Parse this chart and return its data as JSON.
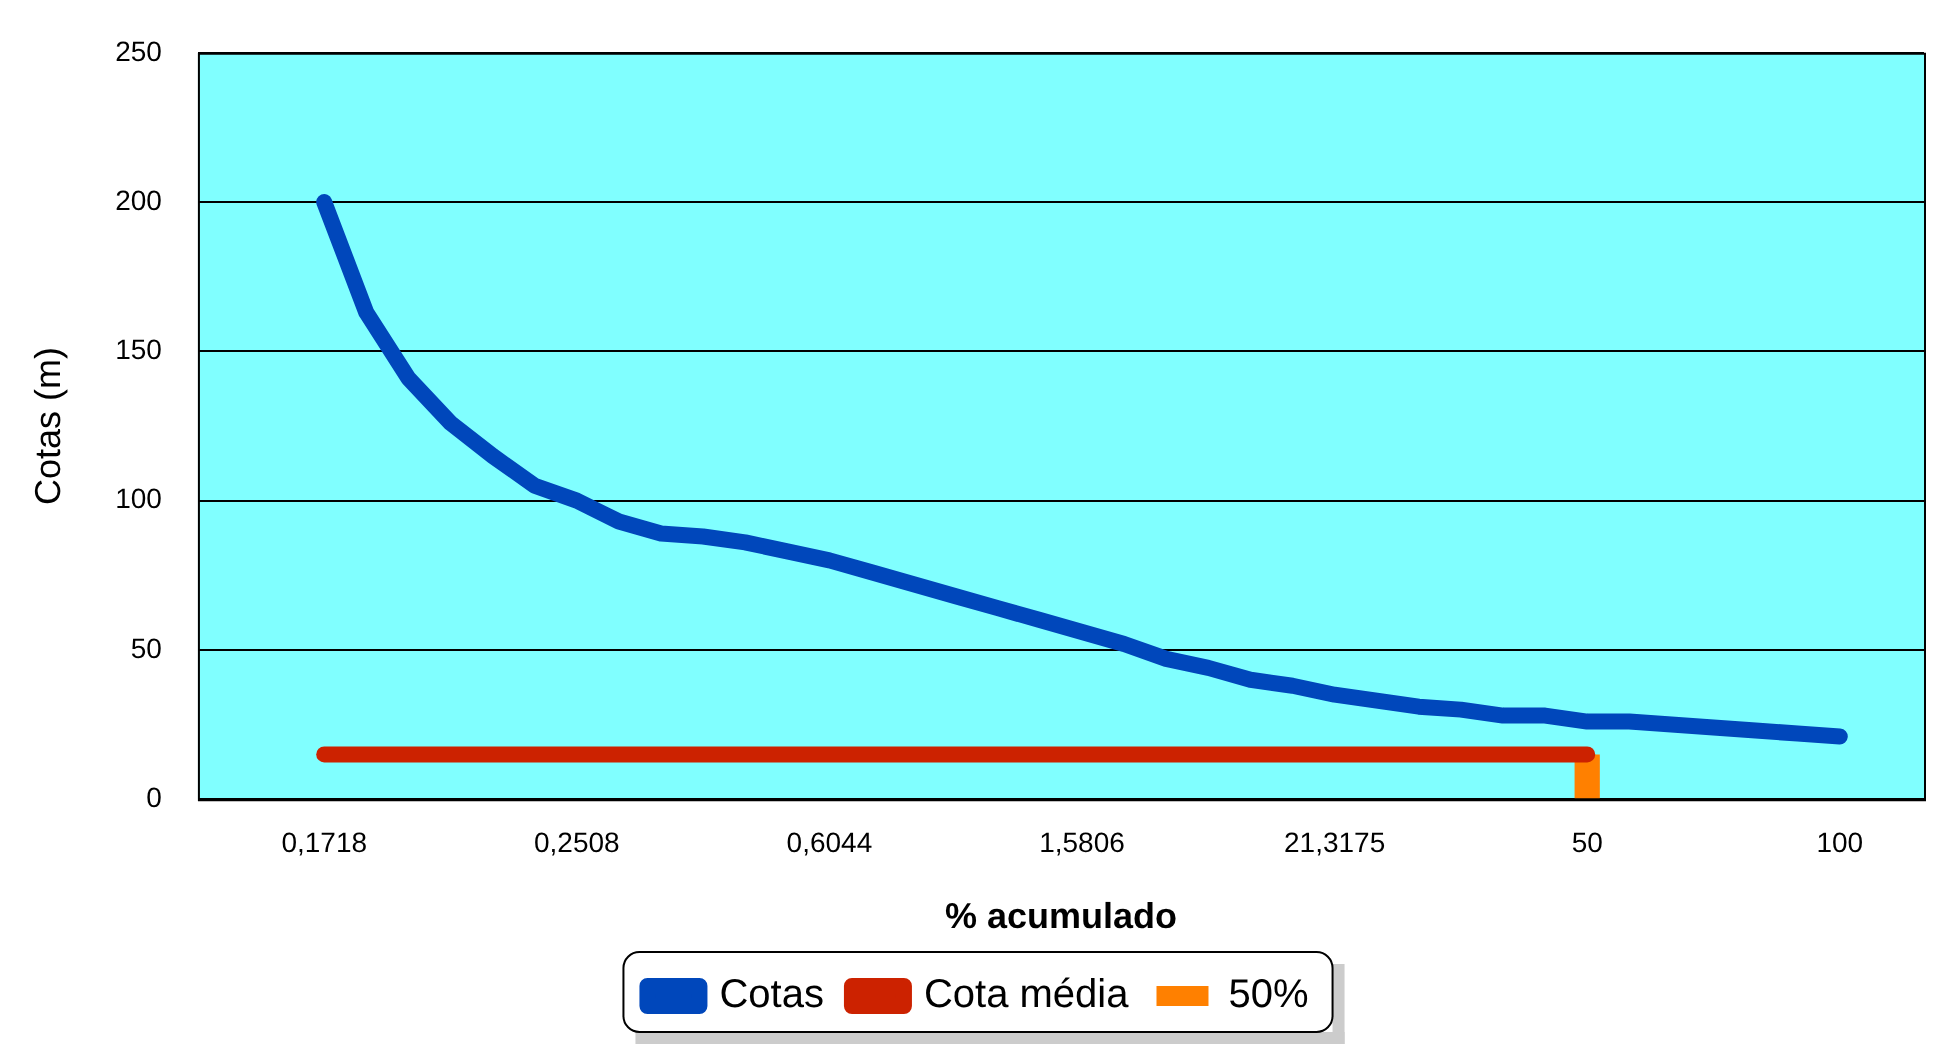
{
  "chart_data": {
    "type": "line",
    "xlabel": "% acumulado",
    "ylabel": "Cotas (m)",
    "categories": [
      null,
      null,
      null,
      "0,1718",
      null,
      null,
      null,
      null,
      null,
      "0,2508",
      null,
      null,
      null,
      null,
      null,
      "0,6044",
      null,
      null,
      null,
      null,
      null,
      "1,5806",
      null,
      null,
      null,
      null,
      null,
      "21,3175",
      null,
      null,
      null,
      null,
      null,
      "50",
      null,
      null,
      null,
      null,
      null,
      "100",
      null,
      null
    ],
    "series": [
      {
        "name": "Cotas",
        "color": "#0047bb",
        "values": [
          null,
          null,
          null,
          200,
          163,
          141,
          126,
          115,
          105,
          100,
          93,
          89,
          88,
          86,
          83,
          80,
          76,
          72,
          68,
          64,
          60,
          56,
          52,
          47,
          44,
          40,
          38,
          35,
          33,
          31,
          30,
          28,
          28,
          26,
          26,
          25,
          24,
          23,
          22,
          21,
          null,
          null
        ]
      },
      {
        "name": "Cota média",
        "color": "#cc2200",
        "values": [
          null,
          null,
          null,
          15,
          15,
          15,
          15,
          15,
          15,
          15,
          15,
          15,
          15,
          15,
          15,
          15,
          15,
          15,
          15,
          15,
          15,
          15,
          15,
          15,
          15,
          15,
          15,
          15,
          15,
          15,
          15,
          15,
          15,
          15,
          null,
          null,
          null,
          null,
          null,
          null,
          null,
          null
        ]
      },
      {
        "name": "50%",
        "type": "bar",
        "color": "#ff8000",
        "values": [
          null,
          null,
          null,
          null,
          null,
          null,
          null,
          null,
          null,
          null,
          null,
          null,
          null,
          null,
          null,
          null,
          null,
          null,
          null,
          null,
          null,
          null,
          null,
          null,
          null,
          null,
          null,
          null,
          null,
          null,
          null,
          null,
          null,
          15,
          null,
          null,
          null,
          null,
          null,
          null,
          null,
          null
        ]
      }
    ],
    "ylim": [
      0,
      250
    ],
    "yticks": [
      0,
      50,
      100,
      150,
      200,
      250
    ],
    "grid": "y",
    "legend": "bottom",
    "marker": "none",
    "line_style": "solid"
  }
}
